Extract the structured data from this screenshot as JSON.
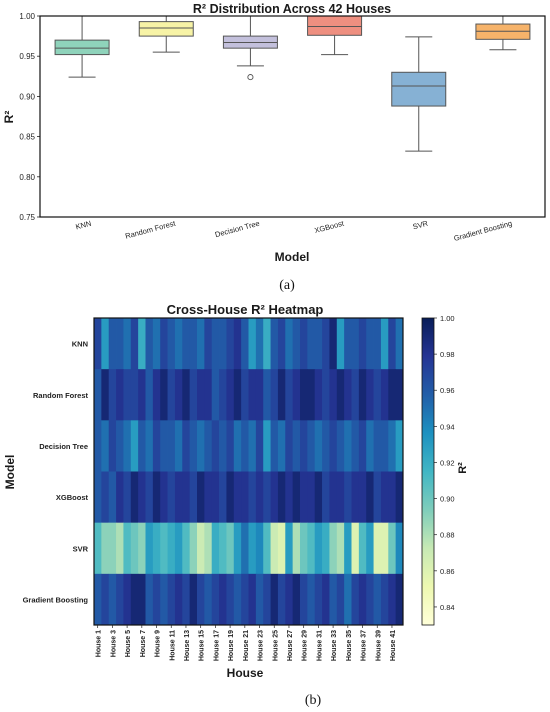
{
  "captions": {
    "a": "(a)",
    "b": "(b)"
  },
  "chart_data": [
    {
      "type": "box",
      "title": "R² Distribution Across 42 Houses",
      "xlabel": "Model",
      "ylabel": "R²",
      "ylim": [
        0.75,
        1.0
      ],
      "yticks": [
        "0.75",
        "0.80",
        "0.85",
        "0.90",
        "0.95",
        "1.00"
      ],
      "grid": false,
      "categories": [
        "KNN",
        "Random Forest",
        "Decision Tree",
        "XGBoost",
        "SVR",
        "Gradient Boosting"
      ],
      "colors": [
        "#8fd3bb",
        "#f7f3a6",
        "#c3c0dc",
        "#ee8f80",
        "#86b1d4",
        "#f6b36a"
      ],
      "boxes": [
        {
          "whisker_low": 0.924,
          "q1": 0.952,
          "median": 0.96,
          "q3": 0.97,
          "whisker_high": 1.0,
          "outliers": []
        },
        {
          "whisker_low": 0.955,
          "q1": 0.975,
          "median": 0.985,
          "q3": 0.993,
          "whisker_high": 1.0,
          "outliers": []
        },
        {
          "whisker_low": 0.938,
          "q1": 0.96,
          "median": 0.967,
          "q3": 0.975,
          "whisker_high": 1.0,
          "outliers": [
            0.924
          ]
        },
        {
          "whisker_low": 0.952,
          "q1": 0.976,
          "median": 0.987,
          "q3": 1.0,
          "whisker_high": 1.0,
          "outliers": []
        },
        {
          "whisker_low": 0.832,
          "q1": 0.888,
          "median": 0.913,
          "q3": 0.93,
          "whisker_high": 0.974,
          "outliers": []
        },
        {
          "whisker_low": 0.958,
          "q1": 0.971,
          "median": 0.981,
          "q3": 0.99,
          "whisker_high": 1.0,
          "outliers": []
        }
      ]
    },
    {
      "type": "heatmap",
      "title": "Cross-House R² Heatmap",
      "xlabel": "House",
      "ylabel": "Model",
      "colorbar_label": "R²",
      "colormap": "YlGnBu",
      "vmin": 0.83,
      "vmax": 1.0,
      "colorbar_ticks": [
        "0.84",
        "0.86",
        "0.88",
        "0.90",
        "0.92",
        "0.94",
        "0.96",
        "0.98",
        "1.00"
      ],
      "rows": [
        "KNN",
        "Random Forest",
        "Decision Tree",
        "XGBoost",
        "SVR",
        "Gradient Boosting"
      ],
      "x_tick_labels": [
        "House 1",
        "House 3",
        "House 5",
        "House 7",
        "House 9",
        "House 11",
        "House 13",
        "House 15",
        "House 17",
        "House 19",
        "House 21",
        "House 23",
        "House 25",
        "House 27",
        "House 29",
        "House 31",
        "House 33",
        "House 35",
        "House 37",
        "House 39",
        "House 41"
      ],
      "values": [
        [
          0.97,
          0.93,
          0.96,
          0.96,
          0.95,
          0.97,
          0.92,
          0.96,
          0.95,
          0.97,
          0.96,
          0.95,
          0.96,
          0.96,
          0.95,
          0.97,
          0.96,
          0.96,
          0.97,
          0.98,
          0.96,
          0.93,
          0.95,
          0.92,
          0.96,
          0.97,
          0.95,
          0.96,
          0.97,
          0.96,
          0.96,
          0.97,
          0.99,
          0.93,
          0.96,
          0.96,
          0.97,
          0.96,
          0.96,
          0.93,
          0.97,
          0.95
        ],
        [
          0.96,
          0.99,
          0.97,
          0.98,
          0.97,
          0.97,
          0.98,
          0.96,
          0.98,
          0.99,
          0.97,
          0.98,
          0.99,
          0.97,
          0.98,
          0.98,
          0.96,
          0.97,
          0.98,
          0.99,
          0.97,
          0.98,
          0.98,
          0.96,
          0.97,
          0.99,
          0.97,
          0.98,
          0.99,
          0.99,
          0.98,
          0.97,
          0.98,
          0.99,
          0.98,
          0.97,
          0.99,
          0.98,
          0.97,
          0.98,
          0.99,
          0.99
        ],
        [
          0.96,
          0.95,
          0.97,
          0.96,
          0.95,
          0.93,
          0.96,
          0.95,
          0.97,
          0.96,
          0.96,
          0.95,
          0.97,
          0.96,
          0.95,
          0.96,
          0.97,
          0.96,
          0.97,
          0.95,
          0.96,
          0.95,
          0.97,
          0.93,
          0.96,
          0.95,
          0.97,
          0.96,
          0.97,
          0.96,
          0.95,
          0.96,
          0.97,
          0.96,
          0.95,
          0.96,
          0.97,
          0.95,
          0.96,
          0.96,
          0.95,
          0.93
        ],
        [
          0.96,
          0.97,
          0.96,
          0.98,
          0.97,
          0.99,
          0.98,
          0.97,
          0.99,
          0.98,
          0.97,
          0.98,
          0.98,
          0.97,
          0.99,
          0.98,
          0.98,
          0.97,
          0.99,
          0.98,
          0.98,
          0.97,
          0.98,
          0.97,
          0.98,
          0.99,
          0.98,
          0.99,
          0.98,
          0.98,
          0.99,
          0.97,
          0.98,
          0.98,
          0.97,
          0.98,
          0.98,
          0.99,
          0.97,
          0.98,
          0.98,
          0.99
        ],
        [
          0.91,
          0.89,
          0.89,
          0.88,
          0.91,
          0.9,
          0.89,
          0.93,
          0.92,
          0.91,
          0.92,
          0.93,
          0.91,
          0.89,
          0.87,
          0.88,
          0.92,
          0.91,
          0.9,
          0.93,
          0.95,
          0.93,
          0.94,
          0.91,
          0.87,
          0.86,
          0.93,
          0.88,
          0.9,
          0.91,
          0.93,
          0.92,
          0.89,
          0.88,
          0.93,
          0.86,
          0.91,
          0.93,
          0.86,
          0.86,
          0.9,
          0.94
        ],
        [
          0.96,
          0.97,
          0.96,
          0.97,
          0.98,
          0.99,
          0.99,
          0.96,
          0.97,
          0.96,
          0.97,
          0.98,
          0.97,
          0.99,
          0.97,
          0.96,
          0.97,
          0.98,
          0.97,
          0.96,
          0.97,
          0.98,
          0.96,
          0.97,
          0.99,
          0.97,
          0.98,
          0.99,
          0.97,
          0.96,
          0.97,
          0.98,
          0.96,
          0.97,
          0.95,
          0.97,
          0.98,
          0.97,
          0.96,
          0.97,
          0.98,
          0.99
        ]
      ]
    }
  ]
}
